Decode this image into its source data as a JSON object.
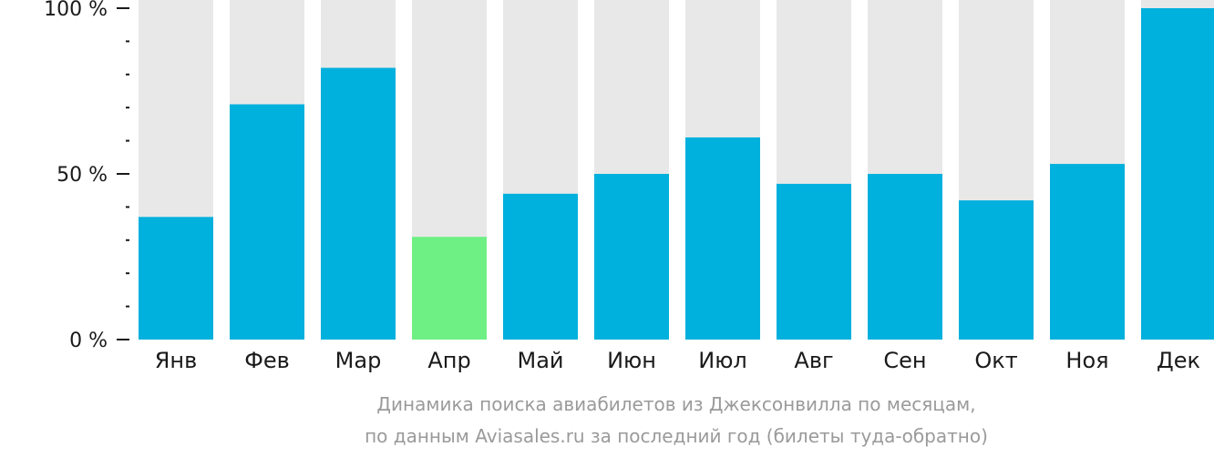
{
  "chart_data": {
    "type": "bar",
    "categories": [
      "Янв",
      "Фев",
      "Мар",
      "Апр",
      "Май",
      "Июн",
      "Июл",
      "Авг",
      "Сен",
      "Окт",
      "Ноя",
      "Дек"
    ],
    "values": [
      37,
      71,
      82,
      31,
      44,
      50,
      61,
      47,
      50,
      42,
      53,
      100
    ],
    "highlight_index": 3,
    "ylim": [
      0,
      100
    ],
    "yticks": [
      {
        "value": 0,
        "label": "0 %"
      },
      {
        "value": 50,
        "label": "50 %"
      },
      {
        "value": 100,
        "label": "100 %"
      }
    ],
    "minor_tick_step": 10,
    "grid": false,
    "colors": {
      "bar": "#00b0dd",
      "highlight": "#6ef084",
      "background_track": "#e8e8e8",
      "axis": "#1a1a1a",
      "caption": "#9a9a9a"
    }
  },
  "caption": {
    "line1": "Динамика поиска авиабилетов из Джексонвилла по месяцам,",
    "line2": "по данным Aviasales.ru за последний год (билеты туда-обратно)"
  }
}
